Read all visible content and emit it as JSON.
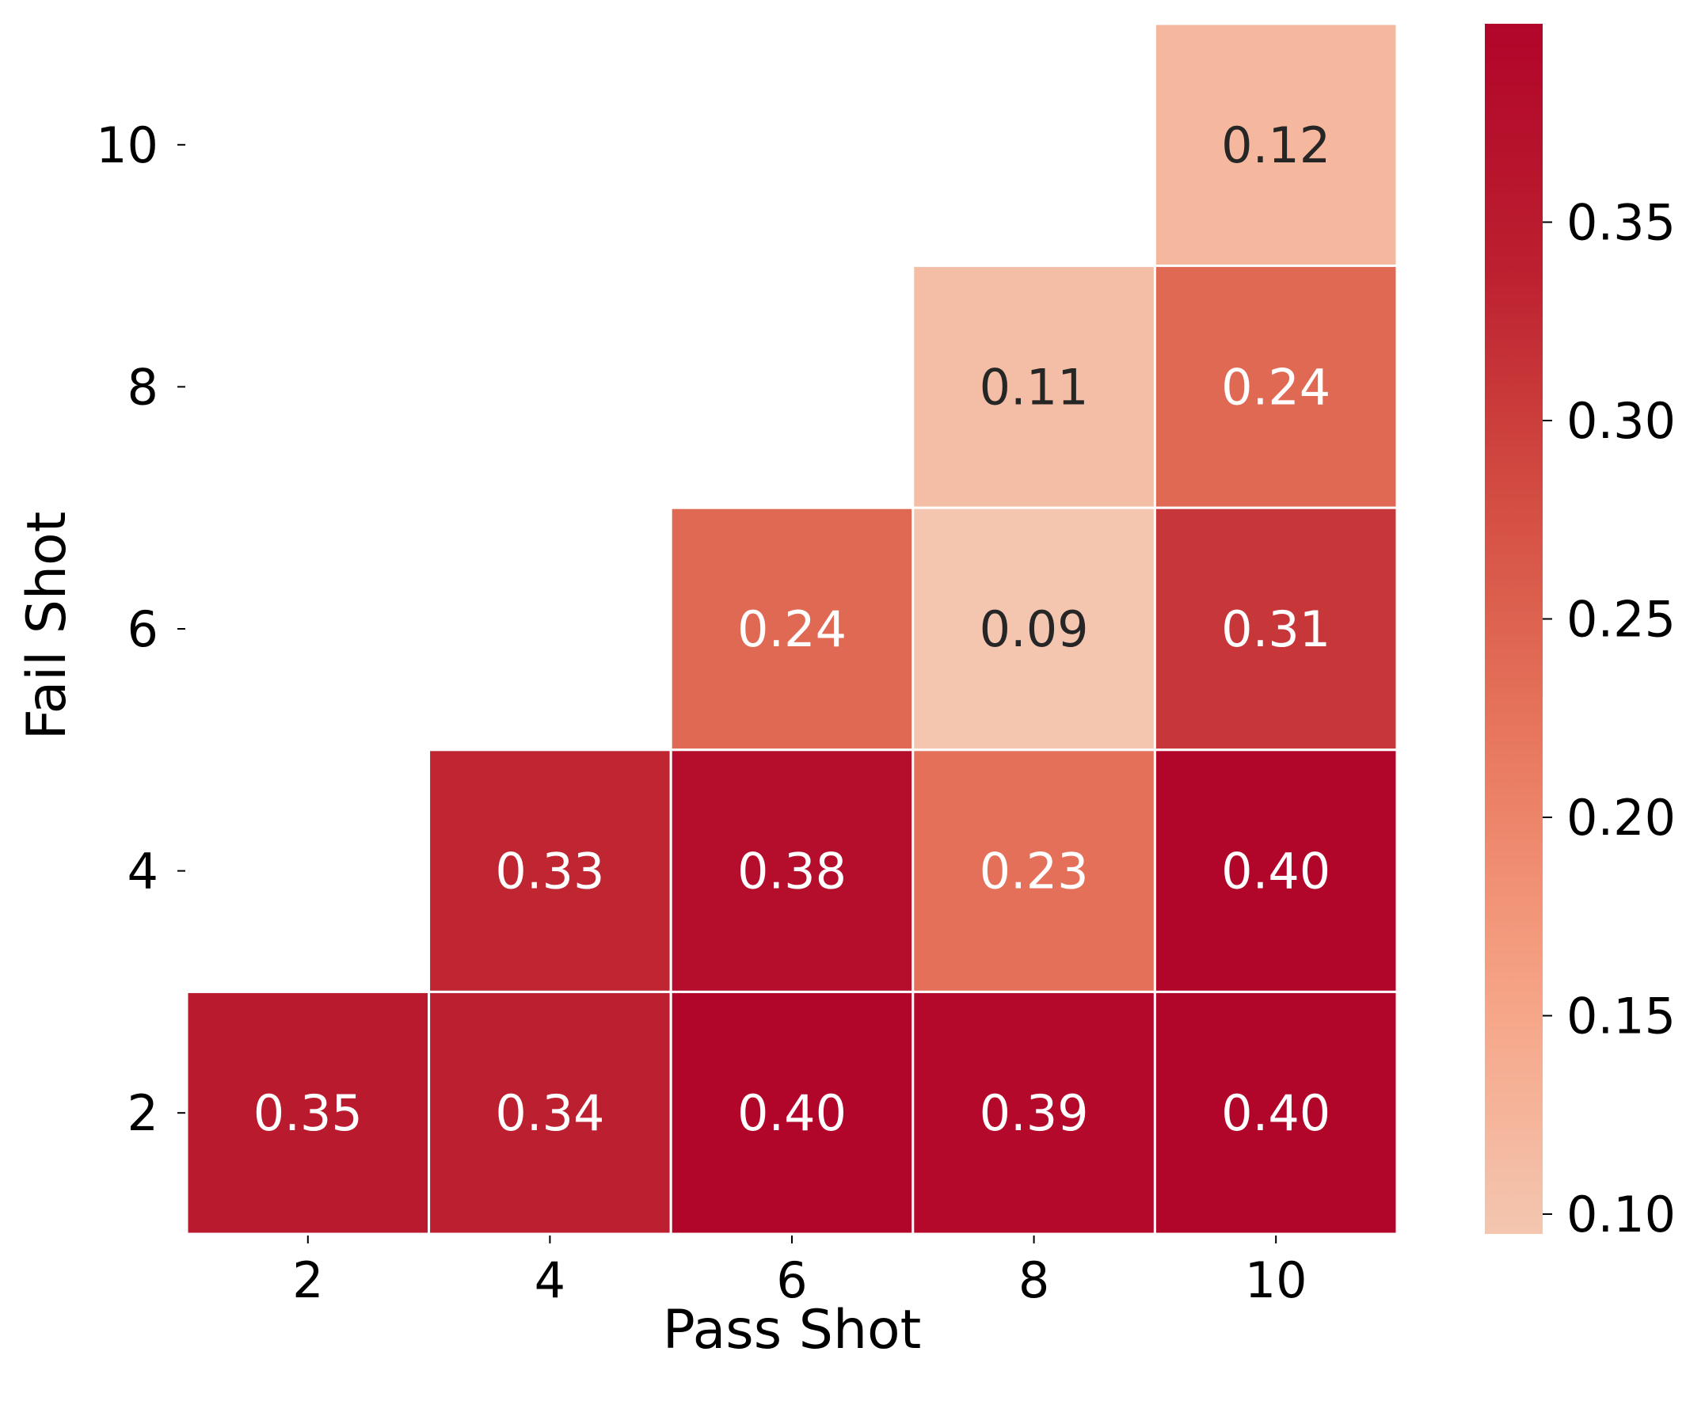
{
  "chart_data": {
    "type": "heatmap",
    "title": "",
    "xlabel": "Pass Shot",
    "ylabel": "Fail Shot",
    "x_categories": [
      "2",
      "4",
      "6",
      "8",
      "10"
    ],
    "y_categories": [
      "10",
      "8",
      "6",
      "4",
      "2"
    ],
    "values": [
      [
        null,
        null,
        null,
        null,
        0.12
      ],
      [
        null,
        null,
        null,
        0.11,
        0.24
      ],
      [
        null,
        null,
        0.24,
        0.09,
        0.31
      ],
      [
        null,
        0.33,
        0.38,
        0.23,
        0.4
      ],
      [
        0.35,
        0.34,
        0.4,
        0.39,
        0.4
      ]
    ],
    "value_labels": [
      [
        null,
        null,
        null,
        null,
        "0.12"
      ],
      [
        null,
        null,
        null,
        "0.11",
        "0.24"
      ],
      [
        null,
        null,
        "0.24",
        "0.09",
        "0.31"
      ],
      [
        null,
        "0.33",
        "0.38",
        "0.23",
        "0.40"
      ],
      [
        "0.35",
        "0.34",
        "0.40",
        "0.39",
        "0.40"
      ]
    ],
    "colorbar": {
      "range": [
        0.095,
        0.4
      ],
      "ticks": [
        0.1,
        0.15,
        0.2,
        0.25,
        0.3,
        0.35
      ],
      "tick_labels": [
        "0.10",
        "0.15",
        "0.20",
        "0.25",
        "0.30",
        "0.35"
      ],
      "colormap": [
        "#f4c6b0",
        "#f6a385",
        "#e8795f",
        "#d44f43",
        "#bc1f2f",
        "#b2052a"
      ]
    },
    "grid": false,
    "legend": "colorbar-right"
  }
}
